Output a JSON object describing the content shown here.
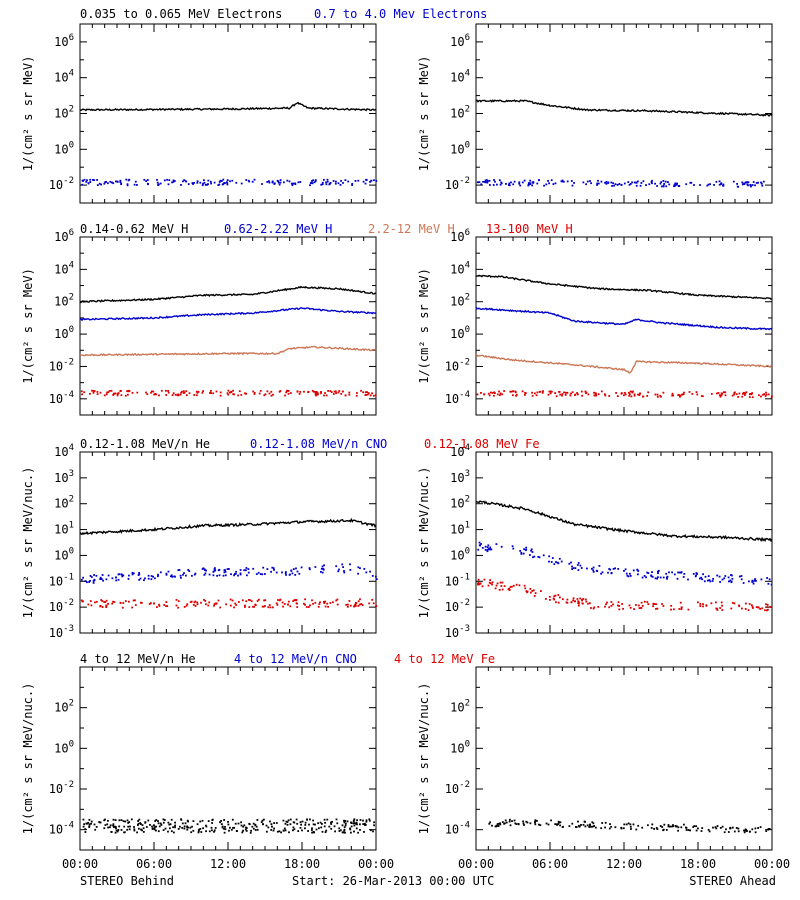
{
  "rows": [
    {
      "id": "electrons",
      "ylabel": "1/(cm² s sr MeV)",
      "log_range": [
        -3,
        7
      ],
      "tick_exponents": [
        -2,
        0,
        2,
        4,
        6
      ],
      "title_segments": [
        {
          "text": "0.035 to 0.065 MeV Electrons",
          "color": "#000000"
        },
        {
          "text": "0.7 to 4.0 Mev Electrons",
          "color": "#0000cc"
        }
      ],
      "panels": [
        {
          "side": "behind",
          "series": [
            {
              "color": "#000000",
              "style": "line",
              "knots": [
                [
                  0,
                  2.2
                ],
                [
                  12,
                  2.25
                ],
                [
                  17,
                  2.3
                ],
                [
                  17.6,
                  2.6
                ],
                [
                  18.5,
                  2.3
                ],
                [
                  24,
                  2.2
                ]
              ]
            },
            {
              "color": "#0000cc",
              "style": "dots",
              "knots": [
                [
                  0,
                  -1.8
                ],
                [
                  24,
                  -1.8
                ]
              ]
            }
          ]
        },
        {
          "side": "ahead",
          "series": [
            {
              "color": "#000000",
              "style": "line",
              "knots": [
                [
                  0,
                  2.7
                ],
                [
                  4,
                  2.7
                ],
                [
                  6,
                  2.45
                ],
                [
                  9,
                  2.2
                ],
                [
                  14,
                  2.15
                ],
                [
                  24,
                  1.9
                ]
              ]
            },
            {
              "color": "#0000cc",
              "style": "dots",
              "knots": [
                [
                  0,
                  -1.8
                ],
                [
                  24,
                  -1.9
                ]
              ]
            }
          ]
        }
      ]
    },
    {
      "id": "protons",
      "ylabel": "1/(cm² s sr MeV)",
      "log_range": [
        -5,
        6
      ],
      "tick_exponents": [
        -4,
        -2,
        0,
        2,
        4,
        6
      ],
      "title_segments": [
        {
          "text": "0.14-0.62 MeV H",
          "color": "#000000"
        },
        {
          "text": "0.62-2.22 MeV H",
          "color": "#0000cc"
        },
        {
          "text": "2.2-12 MeV H",
          "color": "#cc7755"
        },
        {
          "text": "13-100 MeV H",
          "color": "#dd0000"
        }
      ],
      "panels": [
        {
          "side": "behind",
          "series": [
            {
              "color": "#000000",
              "style": "line",
              "knots": [
                [
                  0,
                  2.0
                ],
                [
                  6,
                  2.15
                ],
                [
                  10,
                  2.4
                ],
                [
                  14,
                  2.45
                ],
                [
                  18,
                  2.9
                ],
                [
                  21,
                  2.8
                ],
                [
                  24,
                  2.5
                ]
              ]
            },
            {
              "color": "#0000cc",
              "style": "line",
              "knots": [
                [
                  0,
                  0.9
                ],
                [
                  6,
                  1.0
                ],
                [
                  10,
                  1.2
                ],
                [
                  14,
                  1.3
                ],
                [
                  18,
                  1.6
                ],
                [
                  21,
                  1.4
                ],
                [
                  24,
                  1.3
                ]
              ]
            },
            {
              "color": "#cc7755",
              "style": "line",
              "knots": [
                [
                  0,
                  -1.3
                ],
                [
                  6,
                  -1.25
                ],
                [
                  12,
                  -1.2
                ],
                [
                  16,
                  -1.2
                ],
                [
                  17,
                  -0.9
                ],
                [
                  19,
                  -0.8
                ],
                [
                  24,
                  -1.0
                ]
              ]
            },
            {
              "color": "#dd0000",
              "style": "dots",
              "knots": [
                [
                  0,
                  -3.6
                ],
                [
                  24,
                  -3.6
                ]
              ]
            }
          ]
        },
        {
          "side": "ahead",
          "series": [
            {
              "color": "#000000",
              "style": "line",
              "knots": [
                [
                  0,
                  3.6
                ],
                [
                  2,
                  3.55
                ],
                [
                  6,
                  3.1
                ],
                [
                  10,
                  2.8
                ],
                [
                  14,
                  2.7
                ],
                [
                  18,
                  2.4
                ],
                [
                  24,
                  2.2
                ]
              ]
            },
            {
              "color": "#0000cc",
              "style": "line",
              "knots": [
                [
                  0,
                  1.6
                ],
                [
                  2,
                  1.5
                ],
                [
                  6,
                  1.3
                ],
                [
                  8,
                  0.8
                ],
                [
                  12,
                  0.6
                ],
                [
                  13,
                  0.9
                ],
                [
                  15,
                  0.7
                ],
                [
                  20,
                  0.4
                ],
                [
                  24,
                  0.3
                ]
              ]
            },
            {
              "color": "#cc7755",
              "style": "line",
              "knots": [
                [
                  0,
                  -1.3
                ],
                [
                  3,
                  -1.6
                ],
                [
                  8,
                  -1.9
                ],
                [
                  12,
                  -2.2
                ],
                [
                  12.5,
                  -2.4
                ],
                [
                  13,
                  -1.7
                ],
                [
                  18,
                  -1.8
                ],
                [
                  24,
                  -2.0
                ]
              ]
            },
            {
              "color": "#dd0000",
              "style": "dots",
              "knots": [
                [
                  0,
                  -3.6
                ],
                [
                  24,
                  -3.7
                ]
              ]
            }
          ]
        }
      ]
    },
    {
      "id": "heavy_low",
      "ylabel": "1/(cm² s sr MeV/nuc.)",
      "log_range": [
        -3,
        4
      ],
      "tick_exponents": [
        -3,
        -2,
        -1,
        0,
        1,
        2,
        3,
        4
      ],
      "title_segments": [
        {
          "text": "0.12-1.08 MeV/n He",
          "color": "#000000"
        },
        {
          "text": "0.12-1.08 MeV/n CNO",
          "color": "#0000cc"
        },
        {
          "text": "0.12-1.08 MeV Fe",
          "color": "#dd0000"
        }
      ],
      "panels": [
        {
          "side": "behind",
          "series": [
            {
              "color": "#000000",
              "style": "line",
              "knots": [
                [
                  0,
                  0.85
                ],
                [
                  6,
                  1.0
                ],
                [
                  10,
                  1.15
                ],
                [
                  14,
                  1.2
                ],
                [
                  18,
                  1.3
                ],
                [
                  22,
                  1.35
                ],
                [
                  24,
                  1.15
                ]
              ]
            },
            {
              "color": "#0000cc",
              "style": "dots",
              "knots": [
                [
                  0,
                  -0.9
                ],
                [
                  6,
                  -0.75
                ],
                [
                  10,
                  -0.6
                ],
                [
                  14,
                  -0.6
                ],
                [
                  18,
                  -0.55
                ],
                [
                  22,
                  -0.45
                ],
                [
                  24,
                  -0.75
                ]
              ]
            },
            {
              "color": "#dd0000",
              "style": "dots",
              "knots": [
                [
                  0,
                  -1.85
                ],
                [
                  24,
                  -1.8
                ]
              ]
            }
          ]
        },
        {
          "side": "ahead",
          "series": [
            {
              "color": "#000000",
              "style": "line",
              "knots": [
                [
                  0,
                  2.1
                ],
                [
                  4,
                  1.8
                ],
                [
                  6,
                  1.5
                ],
                [
                  8,
                  1.2
                ],
                [
                  12,
                  0.95
                ],
                [
                  16,
                  0.75
                ],
                [
                  20,
                  0.7
                ],
                [
                  24,
                  0.6
                ]
              ]
            },
            {
              "color": "#0000cc",
              "style": "dots",
              "knots": [
                [
                  0,
                  0.4
                ],
                [
                  4,
                  0.2
                ],
                [
                  6,
                  -0.1
                ],
                [
                  8,
                  -0.4
                ],
                [
                  12,
                  -0.65
                ],
                [
                  18,
                  -0.8
                ],
                [
                  24,
                  -0.95
                ]
              ]
            },
            {
              "color": "#dd0000",
              "style": "dots",
              "knots": [
                [
                  0,
                  -1.0
                ],
                [
                  4,
                  -1.3
                ],
                [
                  6,
                  -1.6
                ],
                [
                  10,
                  -1.9
                ],
                [
                  24,
                  -1.95
                ]
              ]
            }
          ]
        }
      ]
    },
    {
      "id": "heavy_high",
      "ylabel": "1/(cm² s sr MeV/nuc.)",
      "log_range": [
        -5,
        4
      ],
      "tick_exponents": [
        -4,
        -2,
        0,
        2
      ],
      "title_segments": [
        {
          "text": "4 to 12 MeV/n He",
          "color": "#000000"
        },
        {
          "text": "4 to 12 MeV/n CNO",
          "color": "#0000cc"
        },
        {
          "text": "4 to 12 MeV Fe",
          "color": "#dd0000"
        }
      ],
      "panels": [
        {
          "side": "behind",
          "series": [
            {
              "color": "#000000",
              "style": "dots",
              "knots": [
                [
                  0,
                  -3.6
                ],
                [
                  24,
                  -3.6
                ]
              ]
            },
            {
              "color": "#000000",
              "style": "dots",
              "knots": [
                [
                  0,
                  -3.95
                ],
                [
                  24,
                  -3.95
                ]
              ]
            }
          ]
        },
        {
          "side": "ahead",
          "series": [
            {
              "color": "#000000",
              "style": "dots",
              "knots": [
                [
                  1,
                  -3.7
                ],
                [
                  3,
                  -3.6
                ],
                [
                  24,
                  -4.0
                ]
              ]
            }
          ]
        }
      ]
    }
  ],
  "x_ticks": [
    "00:00",
    "06:00",
    "12:00",
    "18:00",
    "00:00"
  ],
  "x_hours": [
    0,
    24
  ],
  "footer": {
    "left_label": "STEREO Behind",
    "center_label": "Start: 26-Mar-2013 00:00 UTC",
    "right_label": "STEREO Ahead"
  }
}
